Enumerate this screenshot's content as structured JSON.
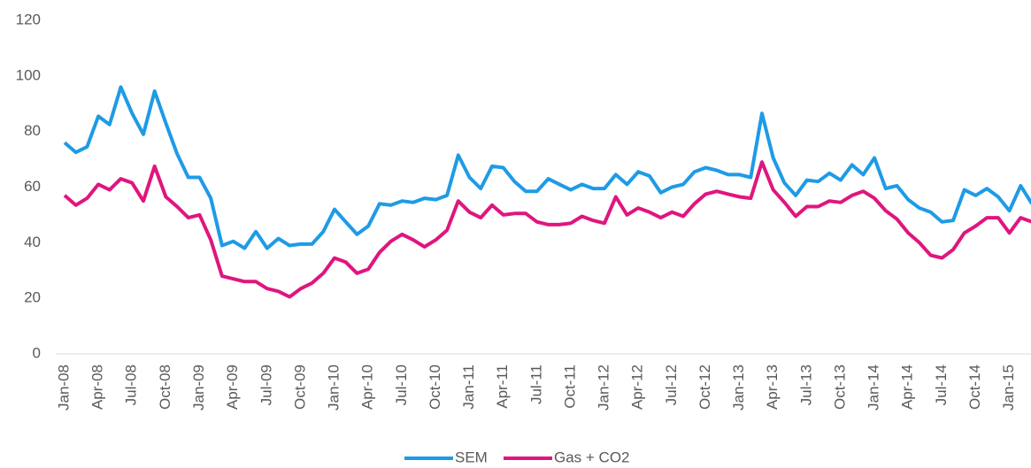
{
  "chart_data": {
    "type": "line",
    "categories": [
      "Jan-08",
      null,
      null,
      "Apr-08",
      null,
      null,
      "Jul-08",
      null,
      null,
      "Oct-08",
      null,
      null,
      "Jan-09",
      null,
      null,
      "Apr-09",
      null,
      null,
      "Jul-09",
      null,
      null,
      "Oct-09",
      null,
      null,
      "Jan-10",
      null,
      null,
      "Apr-10",
      null,
      null,
      "Jul-10",
      null,
      null,
      "Oct-10",
      null,
      null,
      "Jan-11",
      null,
      null,
      "Apr-11",
      null,
      null,
      "Jul-11",
      null,
      null,
      "Oct-11",
      null,
      null,
      "Jan-12",
      null,
      null,
      "Apr-12",
      null,
      null,
      "Jul-12",
      null,
      null,
      "Oct-12",
      null,
      null,
      "Jan-13",
      null,
      null,
      "Apr-13",
      null,
      null,
      "Jul-13",
      null,
      null,
      "Oct-13",
      null,
      null,
      "Jan-14",
      null,
      null,
      "Apr-14",
      null,
      null,
      "Jul-14",
      null,
      null,
      "Oct-14",
      null,
      null,
      "Jan-15",
      null,
      null
    ],
    "series": [
      {
        "name": "SEM",
        "color": "#1e9be6",
        "values": [
          76,
          72.5,
          74.5,
          85.5,
          82.5,
          96,
          86.5,
          79,
          94.5,
          83,
          72,
          63.5,
          63.5,
          56,
          39,
          40.5,
          38,
          44,
          38,
          41.5,
          39,
          39.5,
          39.5,
          44,
          52,
          47.5,
          43,
          46,
          54,
          53.5,
          55,
          54.5,
          56,
          55.5,
          57,
          71.5,
          63.5,
          59.5,
          67.5,
          67,
          62,
          58.5,
          58.5,
          63,
          61,
          59,
          61,
          59.5,
          59.5,
          64.5,
          61,
          65.5,
          64,
          58,
          60,
          61,
          65.5,
          67,
          66,
          64.5,
          64.5,
          63.5,
          86.5,
          70.5,
          61.5,
          57,
          62.5,
          62,
          65,
          62.5,
          68,
          64.5,
          70.5,
          59.5,
          60.5,
          55.5,
          52.5,
          51,
          47.5,
          48,
          59,
          57,
          59.5,
          56.5,
          51.5,
          60.5,
          54
        ]
      },
      {
        "name": "Gas + CO2",
        "color": "#e0157e",
        "values": [
          57,
          53.5,
          56,
          61,
          59,
          63,
          61.5,
          55,
          67.5,
          56.5,
          53,
          49,
          50,
          41,
          28,
          27,
          26,
          26,
          23.5,
          22.5,
          20.5,
          23.5,
          25.5,
          29,
          34.5,
          33,
          29,
          30.5,
          36.5,
          40.5,
          43,
          41,
          38.5,
          41,
          44.5,
          55,
          51,
          49,
          53.5,
          50,
          50.5,
          50.5,
          47.5,
          46.5,
          46.5,
          47,
          49.5,
          48,
          47,
          56.5,
          50,
          52.5,
          51,
          49,
          51,
          49.5,
          54,
          57.5,
          58.5,
          57.5,
          56.5,
          56,
          69,
          59,
          54.5,
          49.5,
          53,
          53,
          55,
          54.5,
          57,
          58.5,
          56,
          51.5,
          48.5,
          43.5,
          40,
          35.5,
          34.5,
          37.5,
          43.5,
          46,
          49,
          49,
          43.5,
          49,
          47.5
        ]
      }
    ],
    "ylim": [
      0,
      120
    ],
    "yticks": [
      0,
      20,
      40,
      60,
      80,
      100,
      120
    ],
    "grid": false,
    "legend": "bottom"
  }
}
